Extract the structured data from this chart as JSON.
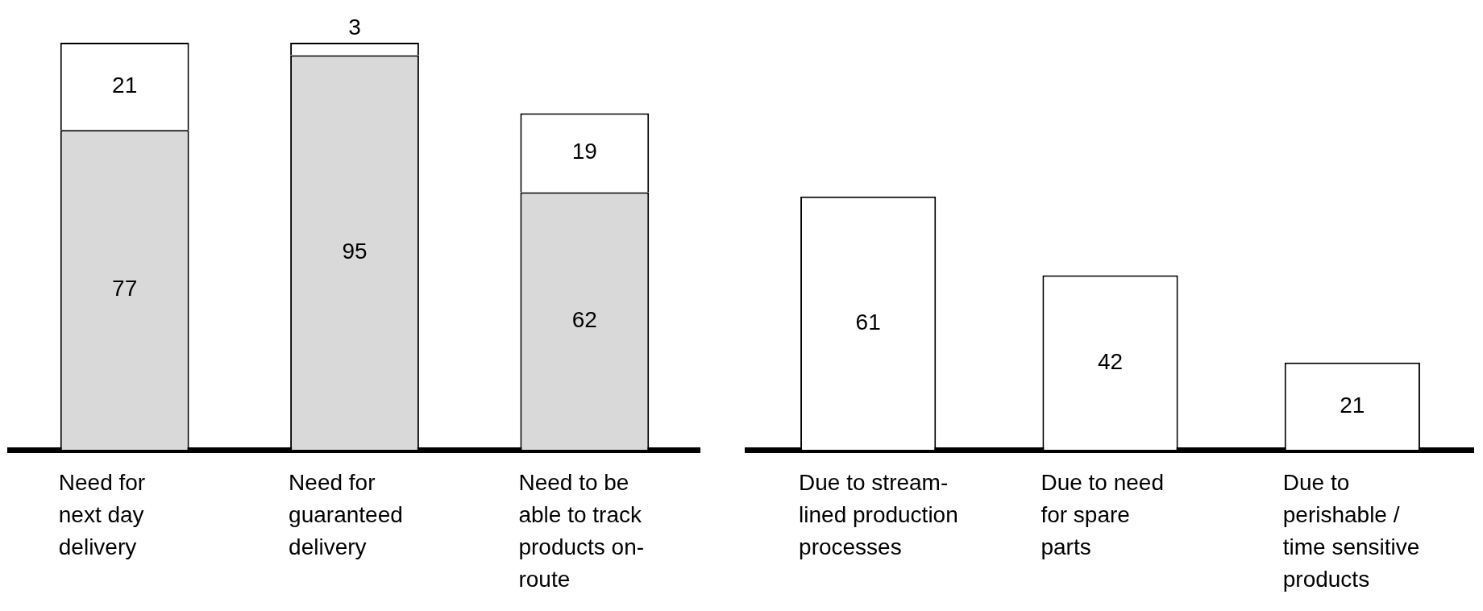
{
  "chart_data": [
    {
      "type": "bar",
      "categories": [
        "Need for\nnext day\ndelivery",
        "Need for\nguaranteed\ndelivery",
        "Need to be\nable to track\nproducts on-\nroute"
      ],
      "stacked": true,
      "data_labels": true,
      "series": [
        {
          "color": "#d9d9d9",
          "values": [
            77,
            95,
            62
          ]
        },
        {
          "color": "#ffffff",
          "values": [
            21,
            3,
            19
          ]
        }
      ]
    },
    {
      "type": "bar",
      "categories": [
        "Due to stream-\nlined production\nprocesses",
        "Due to need\nfor spare\nparts",
        "Due to\nperishable /\ntime sensitive\nproducts"
      ],
      "data_labels": true,
      "color": "#ffffff",
      "values": [
        61,
        42,
        21
      ]
    }
  ]
}
